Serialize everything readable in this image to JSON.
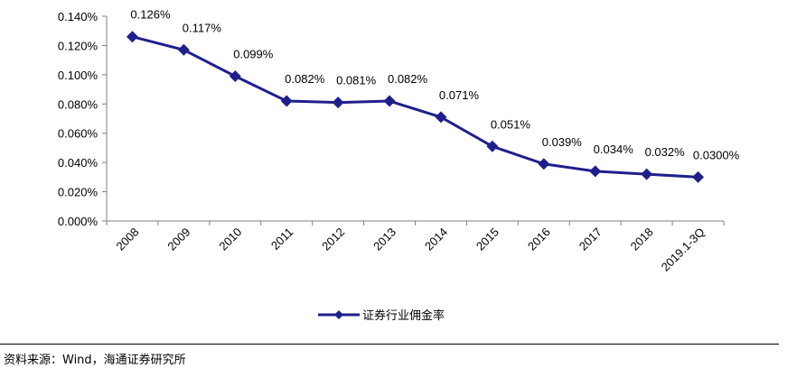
{
  "chart_data": {
    "type": "line",
    "categories": [
      "2008",
      "2009",
      "2010",
      "2011",
      "2012",
      "2013",
      "2014",
      "2015",
      "2016",
      "2017",
      "2018",
      "2019.1-3Q"
    ],
    "series": [
      {
        "name": "证券行业佣金率",
        "values": [
          0.126,
          0.117,
          0.099,
          0.082,
          0.081,
          0.082,
          0.071,
          0.051,
          0.039,
          0.034,
          0.032,
          0.03
        ],
        "labels": [
          "0.126%",
          "0.117%",
          "0.099%",
          "0.082%",
          "0.081%",
          "0.082%",
          "0.071%",
          "0.051%",
          "0.039%",
          "0.034%",
          "0.032%",
          "0.0300%"
        ],
        "color": "#1F1F8C",
        "marker": "diamond"
      }
    ],
    "ylim": [
      0,
      0.14
    ],
    "yticks": [
      0,
      0.02,
      0.04,
      0.06,
      0.08,
      0.1,
      0.12,
      0.14
    ],
    "ytick_labels": [
      "0.000%",
      "0.020%",
      "0.040%",
      "0.060%",
      "0.080%",
      "0.100%",
      "0.120%",
      "0.140%"
    ],
    "grid": false,
    "legend": "bottom-center",
    "xlabel": "",
    "ylabel": "",
    "title": ""
  },
  "legend": {
    "label": "证券行业佣金率"
  },
  "source": "资料来源：Wind，海通证券研究所"
}
